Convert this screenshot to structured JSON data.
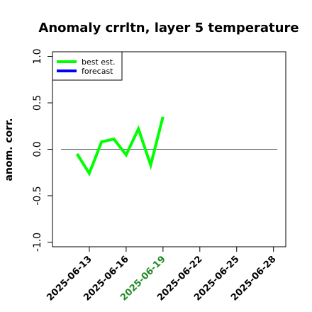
{
  "chart_data": {
    "type": "line",
    "title": "Anomaly crrltn, layer 5 temperature",
    "xlabel": "",
    "ylabel": "anom. corr.",
    "x_ticks": [
      {
        "label": "2025-06-13",
        "color": "#000000"
      },
      {
        "label": "2025-06-16",
        "color": "#000000"
      },
      {
        "label": "2025-06-19",
        "color": "#228B22"
      },
      {
        "label": "2025-06-22",
        "color": "#000000"
      },
      {
        "label": "2025-06-25",
        "color": "#000000"
      },
      {
        "label": "2025-06-28",
        "color": "#000000"
      }
    ],
    "y_ticks": [
      "-1.0",
      "-0.5",
      "0.0",
      "0.5",
      "1.0"
    ],
    "xlim": [
      "2025-06-10",
      "2025-06-29"
    ],
    "ylim": [
      -1.05,
      1.05
    ],
    "grid": false,
    "reference_line": 0.0,
    "legend": {
      "position": "top-left",
      "entries": [
        {
          "label": "best est.",
          "color": "#00FF00"
        },
        {
          "label": "forecast",
          "color": "#0000FF"
        }
      ]
    },
    "series": [
      {
        "name": "best est.",
        "color": "#00FF00",
        "x": [
          "2025-06-12",
          "2025-06-13",
          "2025-06-14",
          "2025-06-15",
          "2025-06-16",
          "2025-06-17",
          "2025-06-18",
          "2025-06-19"
        ],
        "y": [
          -0.05,
          -0.26,
          0.08,
          0.11,
          -0.06,
          0.22,
          -0.17,
          0.35
        ]
      },
      {
        "name": "forecast",
        "color": "#0000FF",
        "x": [],
        "y": []
      }
    ]
  }
}
